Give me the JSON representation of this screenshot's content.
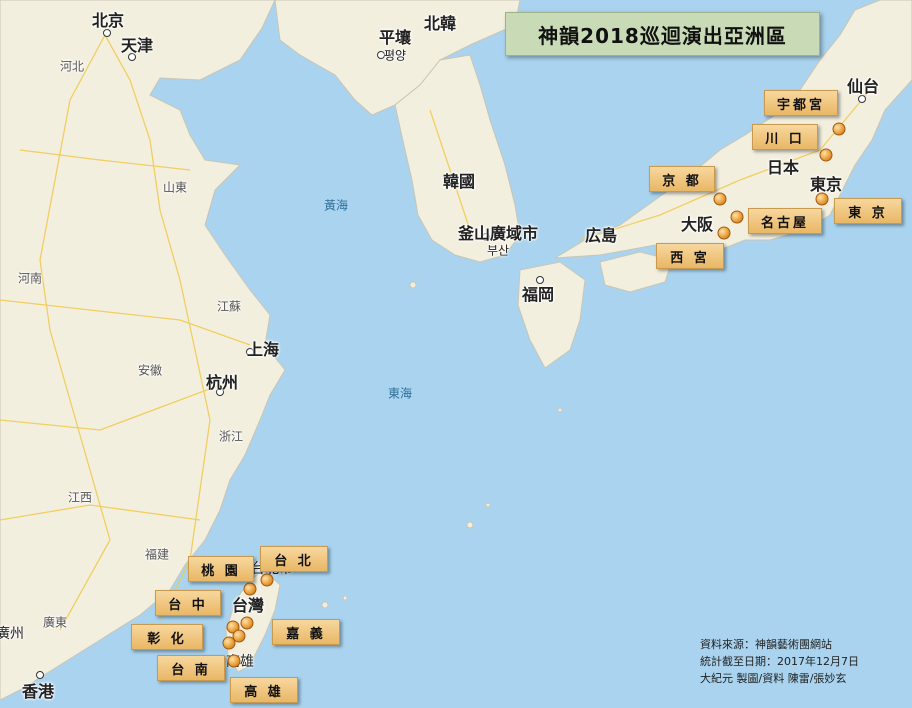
{
  "title": "神韻2018巡迴演出亞洲區",
  "seas": [
    {
      "id": "yellow-sea",
      "text": "黃海"
    },
    {
      "id": "east-sea",
      "text": "東海"
    }
  ],
  "places": {
    "beijing": "北京",
    "tianjin": "天津",
    "hebei": "河北",
    "shandong": "山東",
    "henan": "河南",
    "jiangsu": "江蘇",
    "anhui": "安徽",
    "shanghai": "上海",
    "hangzhou": "杭州",
    "zhejiang": "浙江",
    "jiangxi": "江西",
    "fujian": "福建",
    "guangdong": "廣東",
    "guangzhou": "廣州",
    "hongkong": "香港",
    "taiwan": "台灣",
    "taipei_map": "台北市",
    "kaohsiung_map": "高雄",
    "pyongyang": "平壤",
    "pyongyang_kr": "평양",
    "north_korea": "北韓",
    "korea": "韓國",
    "busan": "釜山廣域市",
    "busan_kr": "부산",
    "fukuoka": "福岡",
    "hiroshima": "広島",
    "osaka": "大阪",
    "japan": "日本",
    "tokyo_map": "東京",
    "sendai": "仙台",
    "nagoya_map": "名古屋"
  },
  "venues": [
    {
      "id": "utsunomiya",
      "text": "宇都宮"
    },
    {
      "id": "kawaguchi",
      "text": "川 口"
    },
    {
      "id": "kyoto",
      "text": "京 都"
    },
    {
      "id": "nagoya",
      "text": "名古屋"
    },
    {
      "id": "tokyo",
      "text": "東 京"
    },
    {
      "id": "nishinomiya",
      "text": "西 宮"
    },
    {
      "id": "taipei",
      "text": "台 北"
    },
    {
      "id": "taoyuan",
      "text": "桃 園"
    },
    {
      "id": "taichung",
      "text": "台 中"
    },
    {
      "id": "chiayi",
      "text": "嘉 義"
    },
    {
      "id": "changhua",
      "text": "彰 化"
    },
    {
      "id": "tainan",
      "text": "台 南"
    },
    {
      "id": "kaohsiung",
      "text": "高 雄"
    }
  ],
  "credits": {
    "source": "資料來源：神韻藝術團網站",
    "date": "統計截至日期：2017年12月7日",
    "author": "大紀元 製圖/資料 陳雷/張妙玄"
  },
  "colors": {
    "sea": "#a9d3ee",
    "land": "#f3efdf",
    "label": "#efc276",
    "title_bg": "#c9dbb6"
  }
}
